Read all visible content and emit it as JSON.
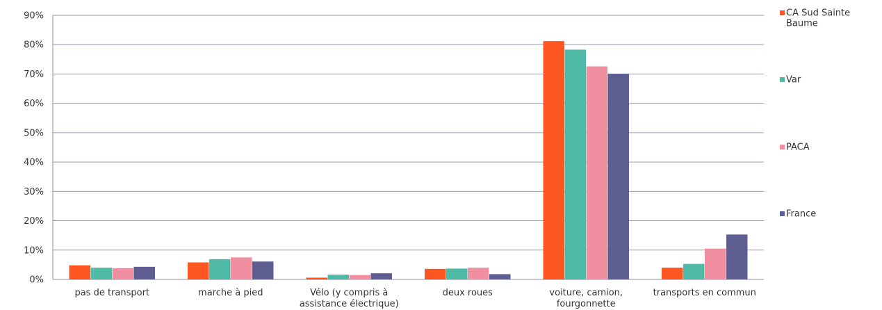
{
  "chart_data": {
    "type": "bar",
    "categories": [
      [
        "pas de transport"
      ],
      [
        "marche à pied"
      ],
      [
        "Vélo (y compris à",
        "assistance électrique)"
      ],
      [
        "deux roues"
      ],
      [
        "voiture, camion,",
        "fourgonnette"
      ],
      [
        "transports en commun"
      ]
    ],
    "series": [
      {
        "name": [
          "CA Sud Sainte",
          "Baume"
        ],
        "color": "#fe5621",
        "values": [
          4.8,
          5.8,
          0.6,
          3.6,
          81.2,
          4.0
        ]
      },
      {
        "name": [
          "Var"
        ],
        "color": "#4fbaa6",
        "values": [
          4.0,
          6.9,
          1.6,
          3.7,
          78.3,
          5.3
        ]
      },
      {
        "name": [
          "PACA"
        ],
        "color": "#f08f9f",
        "values": [
          3.8,
          7.5,
          1.5,
          4.0,
          72.6,
          10.5
        ]
      },
      {
        "name": [
          "France"
        ],
        "color": "#5f5e93",
        "values": [
          4.3,
          6.1,
          2.1,
          1.8,
          70.1,
          15.3
        ]
      }
    ],
    "y_ticks": [
      "0%",
      "10%",
      "20%",
      "30%",
      "40%",
      "50%",
      "60%",
      "70%",
      "80%",
      "90%"
    ],
    "ylim": [
      0,
      90
    ],
    "grid": true,
    "legend_position": "right"
  }
}
